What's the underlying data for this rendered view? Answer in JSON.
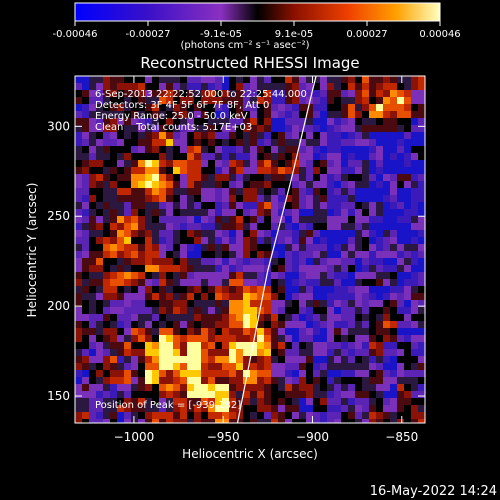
{
  "colorbar": {
    "ticks": [
      "-0.00046",
      "-0.00027",
      "-9.1e-05",
      "9.1e-05",
      "0.00027",
      "0.00046"
    ],
    "unit_label": "(photons cm⁻² s⁻¹ asec⁻²)",
    "colors": [
      "#0000c8",
      "#3010b0",
      "#6a28b8",
      "#9a3ab0",
      "#000000",
      "#5a0a00",
      "#a01800",
      "#e03a00",
      "#ff7a00",
      "#ffc400",
      "#ffffb0"
    ]
  },
  "chart_data": {
    "type": "heatmap",
    "title": "Reconstructed RHESSI Image",
    "xlabel": "Heliocentric X (arcsec)",
    "ylabel": "Heliocentric Y (arcsec)",
    "xlim": [
      -1033,
      -837
    ],
    "ylim": [
      135,
      328
    ],
    "xticks": [
      -1000,
      -950,
      -900,
      -850
    ],
    "xtick_labels": [
      "−1000",
      "−950",
      "−900",
      "−850"
    ],
    "yticks": [
      150,
      200,
      250,
      300
    ],
    "ytick_labels": [
      "150",
      "200",
      "250",
      "300"
    ],
    "info_lines": [
      "6-Sep-2013 22:22:52.000 to 22:25:44.000",
      "Detectors: 3F 4F 5F 6F 7F 8F, Att 0",
      "Energy Range: 25.0 - 50.0 keV",
      "Clean    Total counts: 5.17E+03"
    ],
    "peak_label": "Position of Peak = [-939,182]",
    "limb_line": [
      [
        -942,
        135
      ],
      [
        -935,
        170
      ],
      [
        -925,
        220
      ],
      [
        -912,
        270
      ],
      [
        -900,
        320
      ],
      [
        -898,
        328
      ]
    ]
  },
  "footer": {
    "timestamp": "16-May-2022 14:24"
  }
}
